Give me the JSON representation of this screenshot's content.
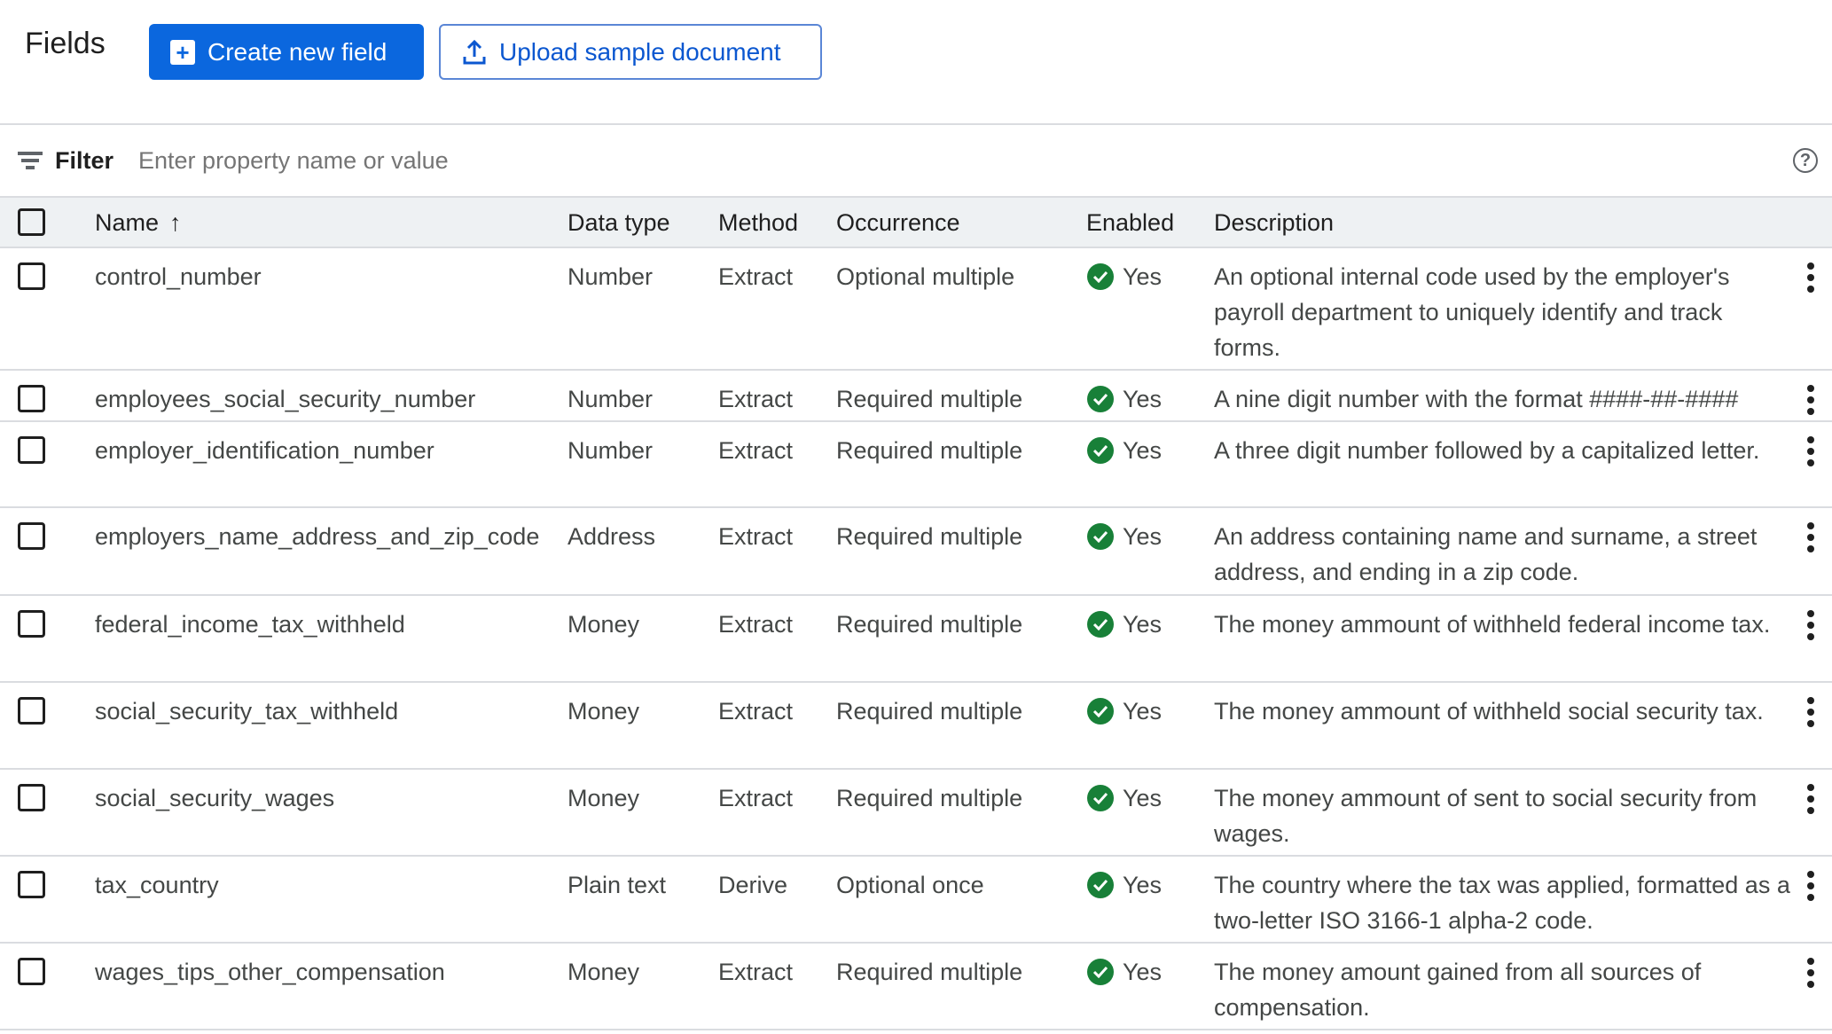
{
  "header": {
    "title": "Fields",
    "create_label": "Create new field",
    "upload_label": "Upload sample document"
  },
  "filter": {
    "label": "Filter",
    "placeholder": "Enter property name or value"
  },
  "columns": {
    "name": "Name",
    "data_type": "Data type",
    "method": "Method",
    "occurrence": "Occurrence",
    "enabled": "Enabled",
    "description": "Description",
    "sort": "ascending"
  },
  "rows": [
    {
      "name": "control_number",
      "type": "Number",
      "method": "Extract",
      "occurrence": "Optional multiple",
      "enabled": "Yes",
      "description": "An optional internal code used by the employer's payroll department to uniquely identify and track forms."
    },
    {
      "name": "employees_social_security_number",
      "type": "Number",
      "method": "Extract",
      "occurrence": "Required multiple",
      "enabled": "Yes",
      "description": "A nine digit number with the format ####-##-####"
    },
    {
      "name": "employer_identification_number",
      "type": "Number",
      "method": "Extract",
      "occurrence": "Required multiple",
      "enabled": "Yes",
      "description": "A three digit number followed by a capitalized letter."
    },
    {
      "name": "employers_name_address_and_zip_code",
      "type": "Address",
      "method": "Extract",
      "occurrence": "Required multiple",
      "enabled": "Yes",
      "description": "An address containing name and surname, a street address, and ending in a zip code."
    },
    {
      "name": "federal_income_tax_withheld",
      "type": "Money",
      "method": "Extract",
      "occurrence": "Required multiple",
      "enabled": "Yes",
      "description": "The money ammount of withheld federal income tax."
    },
    {
      "name": "social_security_tax_withheld",
      "type": "Money",
      "method": "Extract",
      "occurrence": "Required multiple",
      "enabled": "Yes",
      "description": "The money ammount of withheld social security tax."
    },
    {
      "name": "social_security_wages",
      "type": "Money",
      "method": "Extract",
      "occurrence": "Required multiple",
      "enabled": "Yes",
      "description": "The money ammount of sent to social security from wages."
    },
    {
      "name": "tax_country",
      "type": "Plain text",
      "method": "Derive",
      "occurrence": "Optional once",
      "enabled": "Yes",
      "description": "The country where the tax was applied, formatted as a two-letter ISO 3166-1 alpha-2 code."
    },
    {
      "name": "wages_tips_other_compensation",
      "type": "Money",
      "method": "Extract",
      "occurrence": "Required multiple",
      "enabled": "Yes",
      "description": "The money amount gained from all sources of compensation."
    }
  ],
  "colors": {
    "primary": "#0b67de",
    "enabled": "#188038",
    "header_bg": "#eef1f3"
  }
}
